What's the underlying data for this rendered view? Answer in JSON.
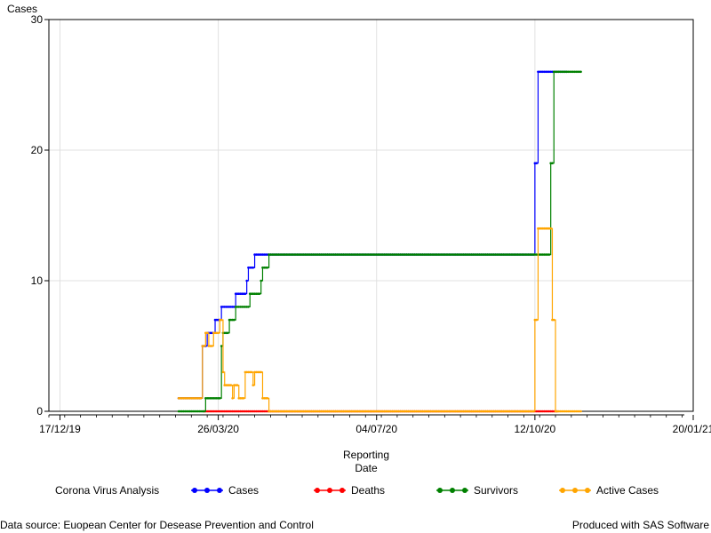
{
  "chart_data": {
    "type": "line",
    "ylabel": "Cases",
    "xlabel_lines": [
      "Reporting",
      "Date"
    ],
    "ylim": [
      0,
      30
    ],
    "y_ticks": [
      0,
      10,
      20,
      30
    ],
    "x_ticks": [
      {
        "date": "2019-12-17",
        "label": "17/12/19"
      },
      {
        "date": "2020-03-26",
        "label": "26/03/20"
      },
      {
        "date": "2020-07-04",
        "label": "04/07/20"
      },
      {
        "date": "2020-10-12",
        "label": "12/10/20"
      },
      {
        "date": "2021-01-20",
        "label": "20/01/21"
      }
    ],
    "xlim": [
      "2019-12-10",
      "2021-01-20"
    ],
    "grid": true,
    "legend_title": "Corona Virus Analysis",
    "legend_position": "bottom",
    "series": [
      {
        "name": "Cases",
        "color": "#0000ff",
        "points": [
          [
            "2020-03-01",
            1
          ],
          [
            "2020-03-15",
            1
          ],
          [
            "2020-03-16",
            5
          ],
          [
            "2020-03-19",
            6
          ],
          [
            "2020-03-24",
            7
          ],
          [
            "2020-03-28",
            8
          ],
          [
            "2020-04-06",
            9
          ],
          [
            "2020-04-13",
            10
          ],
          [
            "2020-04-14",
            11
          ],
          [
            "2020-04-18",
            12
          ],
          [
            "2020-10-11",
            12
          ],
          [
            "2020-10-12",
            19
          ],
          [
            "2020-10-14",
            26
          ],
          [
            "2020-11-01",
            26
          ]
        ]
      },
      {
        "name": "Deaths",
        "color": "#ff0000",
        "points": [
          [
            "2020-03-17",
            0
          ],
          [
            "2020-10-12",
            0
          ],
          [
            "2020-10-26",
            0
          ]
        ]
      },
      {
        "name": "Survivors",
        "color": "#008000",
        "points": [
          [
            "2020-03-01",
            0
          ],
          [
            "2020-03-17",
            0
          ],
          [
            "2020-03-18",
            1
          ],
          [
            "2020-03-27",
            1
          ],
          [
            "2020-03-28",
            5
          ],
          [
            "2020-03-29",
            6
          ],
          [
            "2020-04-02",
            7
          ],
          [
            "2020-04-06",
            8
          ],
          [
            "2020-04-15",
            9
          ],
          [
            "2020-04-22",
            10
          ],
          [
            "2020-04-23",
            11
          ],
          [
            "2020-04-27",
            12
          ],
          [
            "2020-10-21",
            12
          ],
          [
            "2020-10-22",
            19
          ],
          [
            "2020-10-24",
            26
          ],
          [
            "2020-11-10",
            26
          ]
        ]
      },
      {
        "name": "Active Cases",
        "color": "#ffa500",
        "points": [
          [
            "2020-03-01",
            1
          ],
          [
            "2020-03-15",
            1
          ],
          [
            "2020-03-16",
            5
          ],
          [
            "2020-03-18",
            6
          ],
          [
            "2020-03-20",
            5
          ],
          [
            "2020-03-23",
            6
          ],
          [
            "2020-03-27",
            7
          ],
          [
            "2020-03-29",
            3
          ],
          [
            "2020-03-30",
            2
          ],
          [
            "2020-04-04",
            1
          ],
          [
            "2020-04-05",
            2
          ],
          [
            "2020-04-08",
            1
          ],
          [
            "2020-04-12",
            3
          ],
          [
            "2020-04-17",
            2
          ],
          [
            "2020-04-18",
            3
          ],
          [
            "2020-04-23",
            1
          ],
          [
            "2020-04-27",
            0
          ],
          [
            "2020-10-11",
            0
          ],
          [
            "2020-10-12",
            7
          ],
          [
            "2020-10-14",
            14
          ],
          [
            "2020-10-20",
            14
          ],
          [
            "2020-10-23",
            7
          ],
          [
            "2020-10-25",
            0
          ],
          [
            "2020-11-10",
            0
          ]
        ]
      }
    ]
  },
  "footer": {
    "source": "Data source: Euopean Center for Desease Prevention and Control",
    "produced": "Produced with SAS Software"
  }
}
